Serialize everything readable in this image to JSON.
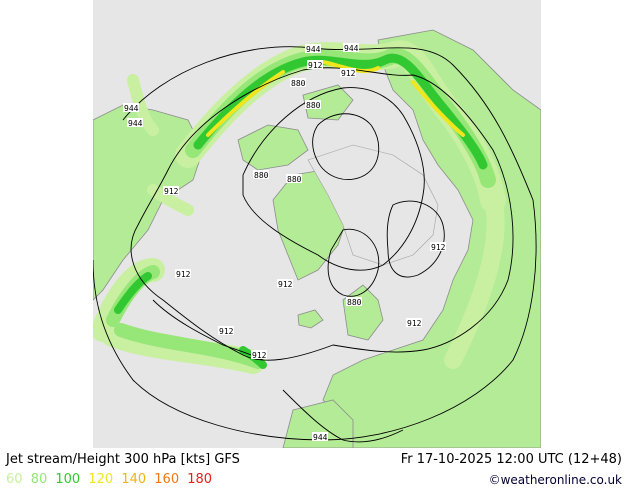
{
  "title": "Jet stream/Height 300 hPa [kts] GFS",
  "valid_time": "Fr 17-10-2025 12:00 UTC (12+48)",
  "credit": "©weatheronline.co.uk",
  "legend": [
    {
      "value": "60",
      "color": "#c8f0a0"
    },
    {
      "value": "80",
      "color": "#96e678"
    },
    {
      "value": "100",
      "color": "#32c832"
    },
    {
      "value": "120",
      "color": "#f0e61e"
    },
    {
      "value": "140",
      "color": "#f0b414"
    },
    {
      "value": "160",
      "color": "#f07814"
    },
    {
      "value": "180",
      "color": "#e61e1e"
    }
  ],
  "contour_labels": [
    "944",
    "944",
    "944",
    "944",
    "912",
    "912",
    "880",
    "880",
    "880",
    "880",
    "912",
    "912",
    "912",
    "880",
    "912",
    "912",
    "912",
    "944"
  ],
  "colors": {
    "ocean": "#e6e6e6",
    "land": "#b4eb96",
    "coast": "#a0a0a0",
    "border": "#8c8c8c",
    "contour": "#000000"
  }
}
